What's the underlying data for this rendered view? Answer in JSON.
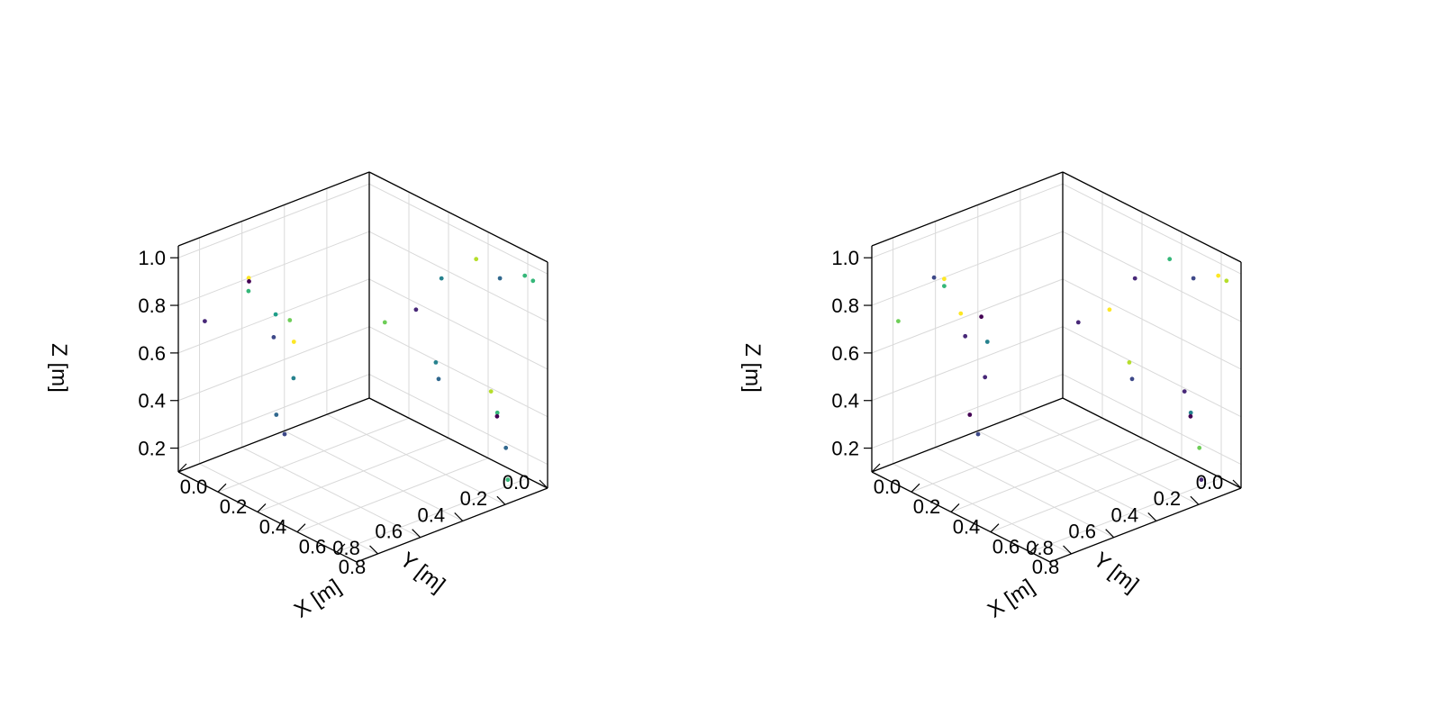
{
  "chart_data": [
    {
      "type": "scatter",
      "title": "",
      "xlabel": "X [m]",
      "ylabel": "Y [m]",
      "zlabel": "Z [m]",
      "xticks": [
        "0.0",
        "0.2",
        "0.4",
        "0.6",
        "0.8"
      ],
      "yticks": [
        "0.0",
        "0.2",
        "0.4",
        "0.6",
        "0.8"
      ],
      "zticks": [
        "0.2",
        "0.4",
        "0.6",
        "0.8",
        "1.0"
      ],
      "xlim": [
        0,
        0.9
      ],
      "ylim": [
        0,
        0.9
      ],
      "zlim": [
        0.1,
        1.05
      ],
      "grid": true,
      "colormap": "viridis",
      "points": [
        {
          "x": 0.08,
          "y": 0.85,
          "z": 0.75,
          "c": 0.1
        },
        {
          "x": 0.12,
          "y": 0.68,
          "z": 0.89,
          "c": 0.98
        },
        {
          "x": 0.1,
          "y": 0.66,
          "z": 0.86,
          "c": 0.05
        },
        {
          "x": 0.14,
          "y": 0.7,
          "z": 0.85,
          "c": 0.65
        },
        {
          "x": 0.17,
          "y": 0.6,
          "z": 0.73,
          "c": 0.5
        },
        {
          "x": 0.22,
          "y": 0.58,
          "z": 0.72,
          "c": 0.75
        },
        {
          "x": 0.16,
          "y": 0.6,
          "z": 0.63,
          "c": 0.2
        },
        {
          "x": 0.23,
          "y": 0.57,
          "z": 0.63,
          "c": 0.95
        },
        {
          "x": 0.26,
          "y": 0.6,
          "z": 0.5,
          "c": 0.45
        },
        {
          "x": 0.12,
          "y": 0.55,
          "z": 0.27,
          "c": 0.3
        },
        {
          "x": 0.14,
          "y": 0.53,
          "z": 0.19,
          "c": 0.28
        },
        {
          "x": 0.4,
          "y": 0.3,
          "z": 0.69,
          "c": 0.7
        },
        {
          "x": 0.45,
          "y": 0.2,
          "z": 0.73,
          "c": 0.15
        },
        {
          "x": 0.45,
          "y": 0.08,
          "z": 0.82,
          "c": 0.45
        },
        {
          "x": 0.55,
          "y": 0.2,
          "z": 0.55,
          "c": 0.4
        },
        {
          "x": 0.65,
          "y": 0.28,
          "z": 0.55,
          "c": 0.3
        },
        {
          "x": 0.7,
          "y": 0.15,
          "z": 1.03,
          "c": 0.85
        },
        {
          "x": 0.82,
          "y": 0.15,
          "z": 1.0,
          "c": 0.3
        },
        {
          "x": 0.86,
          "y": 0.07,
          "z": 1.0,
          "c": 0.68
        },
        {
          "x": 0.88,
          "y": 0.05,
          "z": 0.98,
          "c": 0.6
        },
        {
          "x": 0.7,
          "y": 0.08,
          "z": 0.45,
          "c": 0.8
        },
        {
          "x": 0.7,
          "y": 0.05,
          "z": 0.35,
          "c": 0.62
        },
        {
          "x": 0.72,
          "y": 0.07,
          "z": 0.35,
          "c": 0.05
        },
        {
          "x": 0.85,
          "y": 0.15,
          "z": 0.3,
          "c": 0.32
        },
        {
          "x": 0.86,
          "y": 0.15,
          "z": 0.17,
          "c": 0.6
        }
      ]
    },
    {
      "type": "scatter",
      "title": "",
      "xlabel": "X [m]",
      "ylabel": "Y [m]",
      "zlabel": "Z [m]",
      "xticks": [
        "0.0",
        "0.2",
        "0.4",
        "0.6",
        "0.8"
      ],
      "yticks": [
        "0.0",
        "0.2",
        "0.4",
        "0.6",
        "0.8"
      ],
      "zticks": [
        "0.2",
        "0.4",
        "0.6",
        "0.8",
        "1.0"
      ],
      "xlim": [
        0,
        0.9
      ],
      "ylim": [
        0,
        0.9
      ],
      "zlim": [
        0.1,
        1.05
      ],
      "grid": true,
      "colormap": "viridis",
      "points": [
        {
          "x": 0.08,
          "y": 0.85,
          "z": 0.75,
          "c": 0.75
        },
        {
          "x": 0.1,
          "y": 0.7,
          "z": 0.89,
          "c": 0.25
        },
        {
          "x": 0.13,
          "y": 0.68,
          "z": 0.86,
          "c": 0.62
        },
        {
          "x": 0.13,
          "y": 0.68,
          "z": 0.89,
          "c": 0.98
        },
        {
          "x": 0.16,
          "y": 0.63,
          "z": 0.74,
          "c": 0.95
        },
        {
          "x": 0.21,
          "y": 0.58,
          "z": 0.73,
          "c": 0.05
        },
        {
          "x": 0.15,
          "y": 0.6,
          "z": 0.63,
          "c": 0.15
        },
        {
          "x": 0.23,
          "y": 0.57,
          "z": 0.63,
          "c": 0.45
        },
        {
          "x": 0.25,
          "y": 0.6,
          "z": 0.5,
          "c": 0.15
        },
        {
          "x": 0.12,
          "y": 0.55,
          "z": 0.27,
          "c": 0.08
        },
        {
          "x": 0.14,
          "y": 0.53,
          "z": 0.19,
          "c": 0.28
        },
        {
          "x": 0.4,
          "y": 0.3,
          "z": 0.69,
          "c": 0.15
        },
        {
          "x": 0.45,
          "y": 0.2,
          "z": 0.73,
          "c": 0.95
        },
        {
          "x": 0.45,
          "y": 0.08,
          "z": 0.82,
          "c": 0.1
        },
        {
          "x": 0.55,
          "y": 0.2,
          "z": 0.55,
          "c": 0.8
        },
        {
          "x": 0.65,
          "y": 0.28,
          "z": 0.55,
          "c": 0.25
        },
        {
          "x": 0.7,
          "y": 0.15,
          "z": 1.03,
          "c": 0.6
        },
        {
          "x": 0.82,
          "y": 0.15,
          "z": 1.0,
          "c": 0.2
        },
        {
          "x": 0.86,
          "y": 0.07,
          "z": 1.0,
          "c": 0.9
        },
        {
          "x": 0.88,
          "y": 0.05,
          "z": 0.98,
          "c": 0.82
        },
        {
          "x": 0.7,
          "y": 0.08,
          "z": 0.45,
          "c": 0.1
        },
        {
          "x": 0.7,
          "y": 0.05,
          "z": 0.35,
          "c": 0.4
        },
        {
          "x": 0.72,
          "y": 0.07,
          "z": 0.35,
          "c": 0.05
        },
        {
          "x": 0.85,
          "y": 0.15,
          "z": 0.3,
          "c": 0.75
        },
        {
          "x": 0.86,
          "y": 0.15,
          "z": 0.17,
          "c": 0.1
        }
      ]
    }
  ]
}
